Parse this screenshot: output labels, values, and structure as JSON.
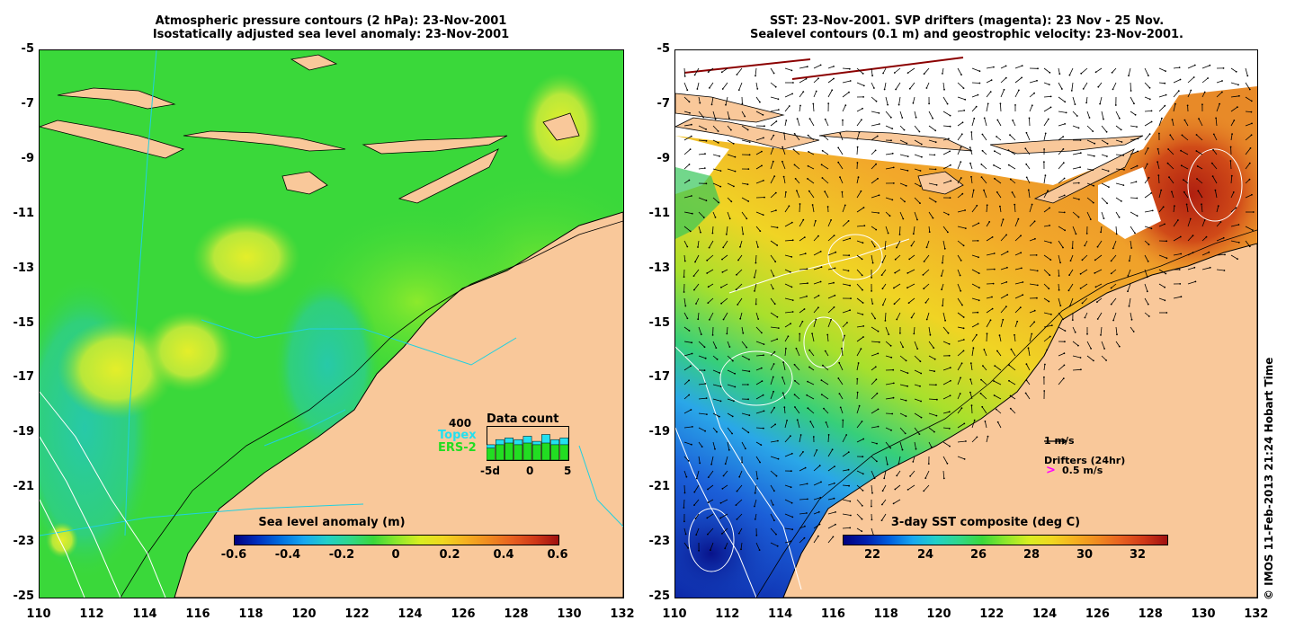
{
  "left_panel": {
    "title_line1": "Atmospheric pressure contours (2 hPa): 23-Nov-2001",
    "title_line2": "Isostatically adjusted sea level anomaly: 23-Nov-2001",
    "colorbar_label": "Sea level anomaly (m)",
    "colorbar_ticks": [
      "-0.6",
      "-0.4",
      "-0.2",
      "0",
      "0.2",
      "0.4",
      "0.6"
    ],
    "inset": {
      "title": "Data count",
      "max_label": "400",
      "topex_label": "Topex",
      "ers_label": "ERS-2",
      "x_ticks": [
        "-5d",
        "0",
        "5"
      ],
      "topex_color": "#22e0f0",
      "ers_color": "#22dd22",
      "topex_counts": [
        0.45,
        0.6,
        0.65,
        0.6,
        0.7,
        0.55,
        0.75,
        0.6,
        0.65
      ],
      "ers_counts": [
        0.35,
        0.45,
        0.5,
        0.45,
        0.5,
        0.45,
        0.5,
        0.45,
        0.45
      ]
    },
    "ocean_color": "#3ad83a",
    "land_color": "#f9c89a"
  },
  "right_panel": {
    "title_line1": "SST: 23-Nov-2001. SVP drifters (magenta): 23 Nov - 25 Nov.",
    "title_line2": "Sealevel contours (0.1 m) and geostrophic velocity: 23-Nov-2001.",
    "colorbar_label": "3-day SST composite (deg C)",
    "colorbar_ticks": [
      "22",
      "24",
      "26",
      "28",
      "30",
      "32"
    ],
    "velocity_legend": "1 m/s",
    "drifters_legend": "Drifters (24hr)",
    "drifters_speed": "0.5 m/s",
    "drifter_symbol": ">",
    "drifter_color": "#ff00ff",
    "land_color": "#f9c89a"
  },
  "axes": {
    "y_ticks": [
      "-5",
      "-7",
      "-9",
      "-11",
      "-13",
      "-15",
      "-17",
      "-19",
      "-21",
      "-23",
      "-25"
    ],
    "x_ticks": [
      "110",
      "112",
      "114",
      "116",
      "118",
      "120",
      "122",
      "124",
      "126",
      "128",
      "130",
      "132"
    ],
    "lon_range": [
      110,
      132
    ],
    "lat_range": [
      -25,
      -5
    ]
  },
  "credit": "© IMOS 11-Feb-2013 21:24 Hobart Time"
}
